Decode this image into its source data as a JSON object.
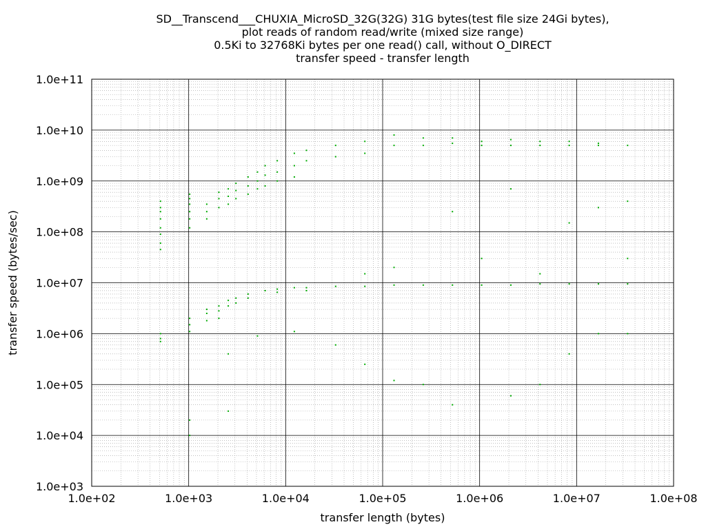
{
  "chart_data": {
    "type": "scatter",
    "title_lines": [
      "SD__Transcend___CHUXIA_MicroSD_32G(32G) 31G bytes(test file size 24Gi bytes),",
      "plot reads of random read/write (mixed size range)",
      "0.5Ki to 32768Ki bytes per one read() call, without O_DIRECT",
      "transfer speed - transfer length"
    ],
    "xlabel": "transfer length (bytes)",
    "ylabel": "transfer speed (bytes/sec)",
    "x_scale": "log",
    "y_scale": "log",
    "xlim": [
      100,
      100000000
    ],
    "ylim": [
      1000,
      100000000000
    ],
    "x_tick_labels": [
      "1.0e+02",
      "1.0e+03",
      "1.0e+04",
      "1.0e+05",
      "1.0e+06",
      "1.0e+07",
      "1.0e+08"
    ],
    "y_tick_labels": [
      "1.0e+03",
      "1.0e+04",
      "1.0e+05",
      "1.0e+06",
      "1.0e+07",
      "1.0e+08",
      "1.0e+09",
      "1.0e+10",
      "1.0e+11"
    ],
    "grid": true,
    "legend": "none",
    "point_color": "#00aa00",
    "series": [
      {
        "points": [
          [
            512,
            250000000
          ],
          [
            512,
            180000000
          ],
          [
            512,
            120000000
          ],
          [
            512,
            90000000
          ],
          [
            512,
            60000000
          ],
          [
            512,
            45000000
          ],
          [
            512,
            300000000
          ],
          [
            512,
            400000000
          ],
          [
            512,
            1000000
          ],
          [
            512,
            800000
          ],
          [
            512,
            700000
          ],
          [
            1024,
            550000000
          ],
          [
            1024,
            450000000
          ],
          [
            1024,
            350000000
          ],
          [
            1024,
            250000000
          ],
          [
            1024,
            180000000
          ],
          [
            1024,
            120000000
          ],
          [
            1024,
            2000000
          ],
          [
            1024,
            1500000
          ],
          [
            1024,
            1100000
          ],
          [
            1024,
            20000
          ],
          [
            1024,
            10000
          ],
          [
            1536,
            350000000
          ],
          [
            1536,
            250000000
          ],
          [
            1536,
            180000000
          ],
          [
            1536,
            3000000
          ],
          [
            1536,
            2500000
          ],
          [
            1536,
            1800000
          ],
          [
            2048,
            600000000
          ],
          [
            2048,
            450000000
          ],
          [
            2048,
            300000000
          ],
          [
            2048,
            3500000
          ],
          [
            2048,
            2800000
          ],
          [
            2048,
            2000000
          ],
          [
            2560,
            400000
          ],
          [
            2560,
            700000000
          ],
          [
            2560,
            500000000
          ],
          [
            2560,
            350000000
          ],
          [
            2560,
            4500000
          ],
          [
            2560,
            3500000
          ],
          [
            2560,
            30000
          ],
          [
            3072,
            900000000
          ],
          [
            3072,
            650000000
          ],
          [
            3072,
            450000000
          ],
          [
            3072,
            5000000
          ],
          [
            3072,
            4000000
          ],
          [
            4096,
            1200000000
          ],
          [
            4096,
            800000000
          ],
          [
            4096,
            550000000
          ],
          [
            4096,
            6000000
          ],
          [
            4096,
            5000000
          ],
          [
            5120,
            1500000000
          ],
          [
            5120,
            1000000000
          ],
          [
            5120,
            700000000
          ],
          [
            5120,
            900000
          ],
          [
            6144,
            2000000000
          ],
          [
            6144,
            1300000000
          ],
          [
            6144,
            800000000
          ],
          [
            6144,
            7000000
          ],
          [
            8192,
            2500000000
          ],
          [
            8192,
            1500000000
          ],
          [
            8192,
            1000000000
          ],
          [
            8192,
            7500000
          ],
          [
            8192,
            6500000
          ],
          [
            12288,
            3500000000
          ],
          [
            12288,
            2000000000
          ],
          [
            12288,
            1200000000
          ],
          [
            12288,
            8000000
          ],
          [
            12288,
            1100000
          ],
          [
            16384,
            4000000000
          ],
          [
            16384,
            2500000000
          ],
          [
            16384,
            8000000
          ],
          [
            16384,
            7000000
          ],
          [
            32768,
            5000000000
          ],
          [
            32768,
            3000000000
          ],
          [
            32768,
            8500000
          ],
          [
            32768,
            600000
          ],
          [
            65536,
            6000000000
          ],
          [
            65536,
            3500000000
          ],
          [
            65536,
            8500000
          ],
          [
            65536,
            250000
          ],
          [
            65536,
            15000000
          ],
          [
            131072,
            8000000000
          ],
          [
            131072,
            5000000000
          ],
          [
            131072,
            9000000
          ],
          [
            131072,
            120000
          ],
          [
            131072,
            20000000
          ],
          [
            262144,
            7000000000
          ],
          [
            262144,
            5000000000
          ],
          [
            262144,
            9000000
          ],
          [
            262144,
            100000
          ],
          [
            524288,
            7000000000
          ],
          [
            524288,
            5500000000
          ],
          [
            524288,
            9000000
          ],
          [
            524288,
            40000
          ],
          [
            524288,
            250000000
          ],
          [
            1048576,
            6000000000
          ],
          [
            1048576,
            5000000000
          ],
          [
            1048576,
            9000000
          ],
          [
            1048576,
            30000000
          ],
          [
            2097152,
            6500000000
          ],
          [
            2097152,
            5000000000
          ],
          [
            2097152,
            9000000
          ],
          [
            2097152,
            60000
          ],
          [
            2097152,
            700000000
          ],
          [
            4194304,
            6000000000
          ],
          [
            4194304,
            5000000000
          ],
          [
            4194304,
            9500000
          ],
          [
            4194304,
            100000
          ],
          [
            4194304,
            15000000
          ],
          [
            8388608,
            6000000000
          ],
          [
            8388608,
            5000000000
          ],
          [
            8388608,
            9500000
          ],
          [
            8388608,
            400000
          ],
          [
            8388608,
            150000000
          ],
          [
            16777216,
            5500000000
          ],
          [
            16777216,
            5000000000
          ],
          [
            16777216,
            9500000
          ],
          [
            16777216,
            300000000
          ],
          [
            16777216,
            1000000
          ],
          [
            33554432,
            5000000000
          ],
          [
            33554432,
            9500000
          ],
          [
            33554432,
            400000000
          ],
          [
            33554432,
            1000000
          ],
          [
            33554432,
            30000000
          ]
        ]
      }
    ]
  }
}
